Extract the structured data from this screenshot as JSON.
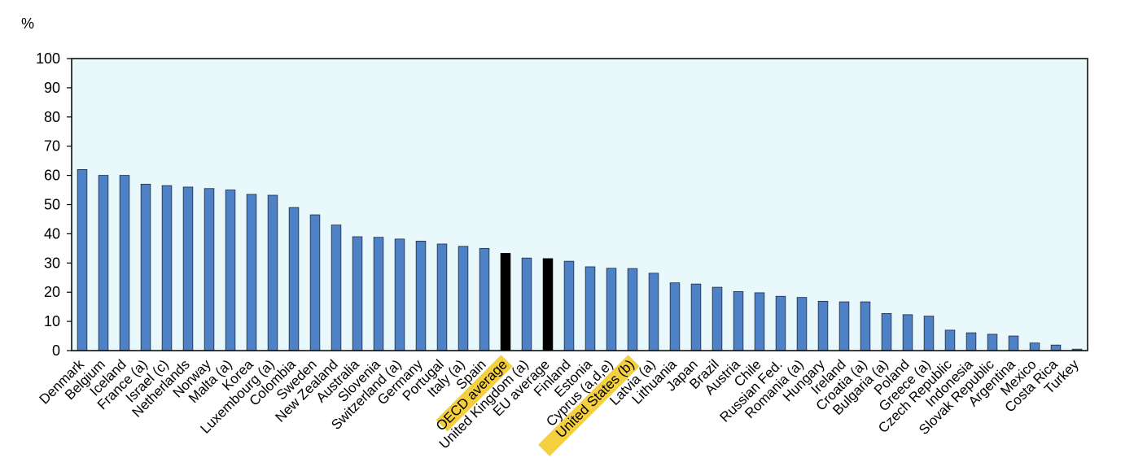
{
  "chart_data": {
    "type": "bar",
    "ylabel": "%",
    "ylim": [
      0,
      100
    ],
    "yticks": [
      0,
      10,
      20,
      30,
      40,
      50,
      60,
      70,
      80,
      90,
      100
    ],
    "grid": false,
    "colors": {
      "plot_background": "#e9f9fb",
      "bar": "#4f81c7",
      "bar_edge": "#1f2a40",
      "highlight_bar": "#000000",
      "label_highlight": "#f4d03f"
    },
    "highlighted_categories": [
      "OECD average",
      "EU average"
    ],
    "highlighted_labels": [
      "OECD average",
      "United States (b)"
    ],
    "categories": [
      "Denmark",
      "Belgium",
      "Iceland",
      "France (a)",
      "Israel (c)",
      "Netherlands",
      "Norway",
      "Malta (a)",
      "Korea",
      "Luxembourg (a)",
      "Colombia",
      "Sweden",
      "New Zealand",
      "Australia",
      "Slovenia",
      "Switzerland (a)",
      "Germany",
      "Portugal",
      "Italy (a)",
      "Spain",
      "OECD average",
      "United Kingdom (a)",
      "EU average",
      "Finland",
      "Estonia",
      "Cyprus (a,d,e)",
      "United States (b)",
      "Latvia (a)",
      "Lithuania",
      "Japan",
      "Brazil",
      "Austria",
      "Chile",
      "Russian Fed.",
      "Romania (a)",
      "Hungary",
      "Ireland",
      "Croatia (a)",
      "Bulgaria (a)",
      "Poland",
      "Greece (a)",
      "Czech Republic",
      "Indonesia",
      "Slovak Republic",
      "Argentina",
      "Mexico",
      "Costa Rica",
      "Turkey"
    ],
    "values": [
      62,
      60,
      60,
      57,
      56.5,
      56,
      55.5,
      55,
      53.5,
      53.2,
      49,
      46.5,
      43,
      39,
      38.8,
      38.2,
      37.5,
      36.5,
      35.7,
      35,
      33.3,
      31.7,
      31.5,
      30.6,
      28.7,
      28.2,
      28.1,
      26.5,
      23.2,
      22.8,
      21.7,
      20.2,
      19.8,
      18.6,
      18.2,
      16.9,
      16.7,
      16.7,
      12.7,
      12.3,
      11.8,
      7,
      6.1,
      5.6,
      5,
      2.6,
      1.9,
      0.5
    ]
  }
}
